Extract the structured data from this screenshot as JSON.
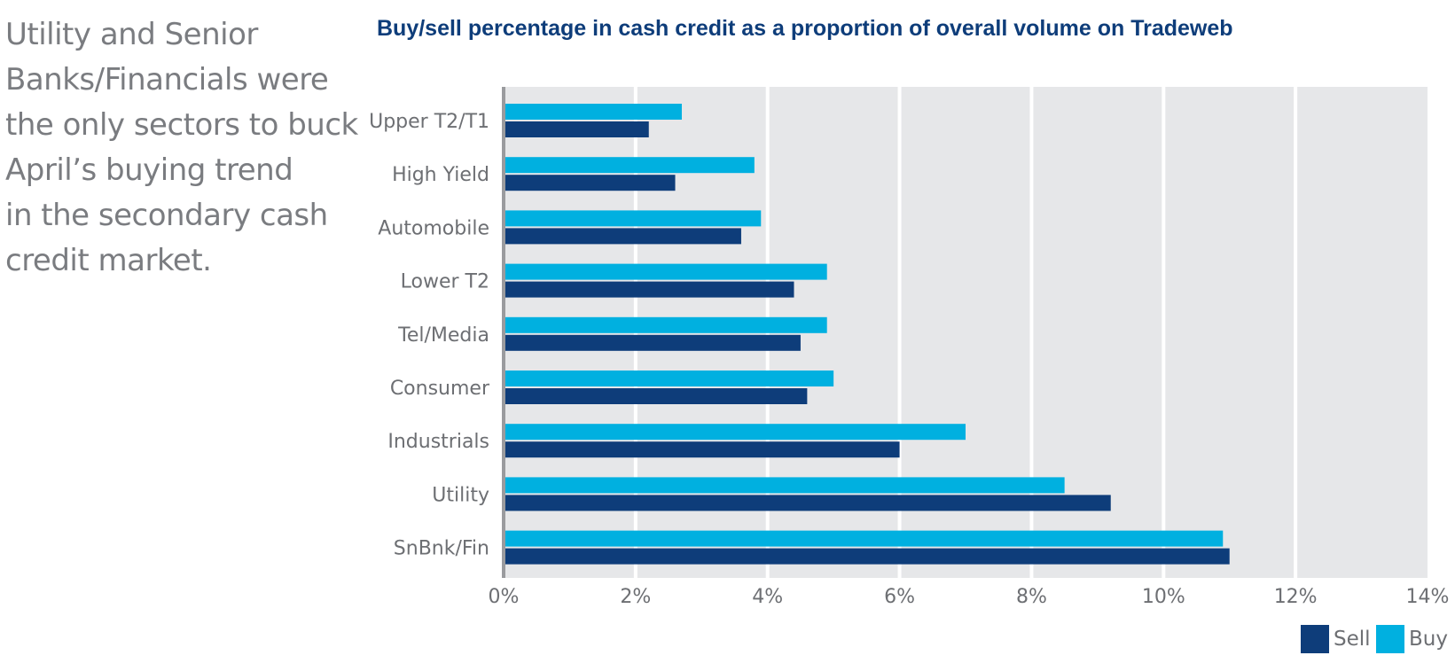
{
  "intro": {
    "lines": [
      "Utility and Senior",
      "Banks/Financials were",
      "the only sectors to buck",
      "April’s buying trend",
      "in the secondary cash",
      "credit market."
    ]
  },
  "colors": {
    "sell": "#0e3d7a",
    "buy": "#00b0e0",
    "plot_bg": "#e6e7e9",
    "grid": "#ffffff",
    "axis": "#9a9b9e"
  },
  "chart_data": {
    "type": "bar",
    "orientation": "horizontal",
    "title": "Buy/sell percentage in cash credit as a proportion of overall volume on Tradeweb",
    "categories": [
      "Upper T2/T1",
      "High Yield",
      "Automobile",
      "Lower T2",
      "Tel/Media",
      "Consumer",
      "Industrials",
      "Utility",
      "SnBnk/Fin"
    ],
    "series": [
      {
        "name": "Buy",
        "values": [
          2.7,
          3.8,
          3.9,
          4.9,
          4.9,
          5.0,
          7.0,
          8.5,
          10.9
        ]
      },
      {
        "name": "Sell",
        "values": [
          2.2,
          2.6,
          3.6,
          4.4,
          4.5,
          4.6,
          6.0,
          9.2,
          11.0
        ]
      }
    ],
    "xlim": [
      0,
      14
    ],
    "xticks": [
      "0%",
      "2%",
      "4%",
      "6%",
      "8%",
      "10%",
      "12%",
      "14%"
    ],
    "grid": true,
    "legend": {
      "position": "bottom-right",
      "order": [
        "Sell",
        "Buy"
      ]
    }
  }
}
